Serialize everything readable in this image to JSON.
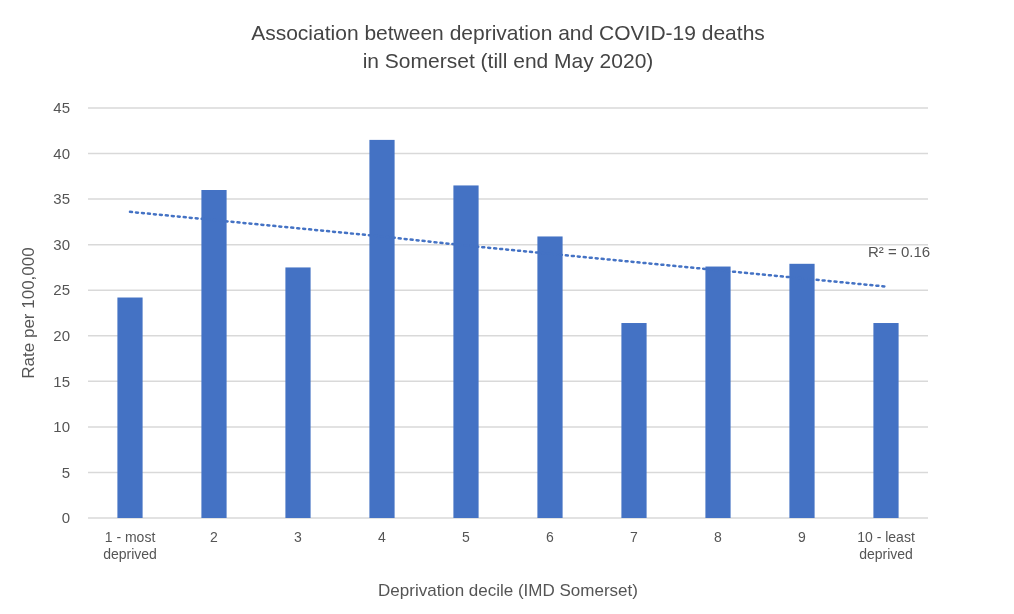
{
  "chart_data": {
    "type": "bar",
    "title": "Association between deprivation and COVID-19 deaths\nin Somerset (till end May 2020)",
    "xlabel": "Deprivation decile (IMD Somerset)",
    "ylabel": "Rate per 100,000",
    "categories": [
      "1 - most deprived",
      "2",
      "3",
      "4",
      "5",
      "6",
      "7",
      "8",
      "9",
      "10 - least deprived"
    ],
    "series": [
      {
        "color": "#4472c4",
        "values": [
          24.2,
          36.0,
          27.5,
          41.5,
          36.5,
          30.9,
          21.4,
          27.6,
          27.9,
          21.4
        ]
      },
      {
        "type": "line",
        "color": "#4472c4",
        "line_style": "dotted",
        "values": [
          33.6,
          32.7,
          31.8,
          30.9,
          29.9,
          29.0,
          28.1,
          27.2,
          26.3,
          25.4
        ]
      }
    ],
    "ylim": [
      0,
      45
    ],
    "yticks": [
      0,
      5,
      10,
      15,
      20,
      25,
      30,
      35,
      40,
      45
    ],
    "grid": "y",
    "annotations": [
      "R² = 0.16"
    ]
  }
}
